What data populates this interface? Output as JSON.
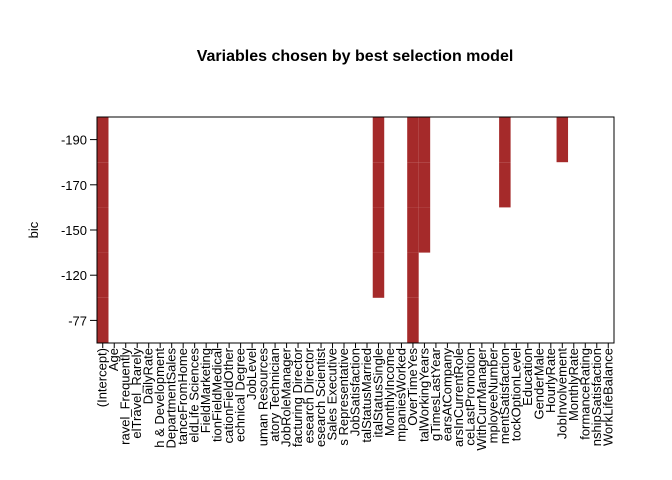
{
  "chart_data": {
    "type": "inclusion-grid",
    "title": "Variables chosen by best selection model",
    "ylabel": "bic",
    "color": "#a52a2a",
    "categories": [
      "(Intercept)",
      "Age",
      "ravel_Frequently",
      "elTravel_Rarely",
      "DailyRate",
      "h & Development",
      "DepartmentSales",
      "tanceFromHome",
      "eldLife Sciences",
      "FieldMarketing",
      "tionFieldMedical",
      "cationFieldOther",
      "echnical Degree",
      "JobLevel",
      "uman Resources",
      "atory Technician",
      "JobRoleManager",
      "facturing Director",
      "esearch Director",
      "esearch Scientist",
      "Sales Executive",
      "s Representative",
      "JobSatisfaction",
      "talStatusMarried",
      "italStatusSingle",
      "MonthlyIncome",
      "mpaniesWorked",
      "OverTimeYes",
      "talWorkingYears",
      "gTimesLastYear",
      "earsAtCompany",
      "arsInCurrentRole",
      "ceLastPromotion",
      "WithCurrManager",
      "mployeeNumber",
      "mentSatisfaction",
      "tockOptionLevel",
      "Education",
      "GenderMale",
      "HourlyRate",
      "JobInvolvement",
      "MonthlyRate",
      "formanceRating",
      "nshipSatisfaction",
      "WorkLifeBalance"
    ],
    "rows": [
      {
        "bic": -190,
        "included": [
          0,
          24,
          27,
          28,
          35,
          40
        ]
      },
      {
        "bic": -170,
        "included": [
          0,
          24,
          27,
          28,
          35
        ]
      },
      {
        "bic": -150,
        "included": [
          0,
          24,
          27,
          28
        ]
      },
      {
        "bic": -120,
        "included": [
          0,
          24,
          27
        ]
      },
      {
        "bic": -77,
        "included": [
          0,
          27
        ]
      }
    ]
  }
}
